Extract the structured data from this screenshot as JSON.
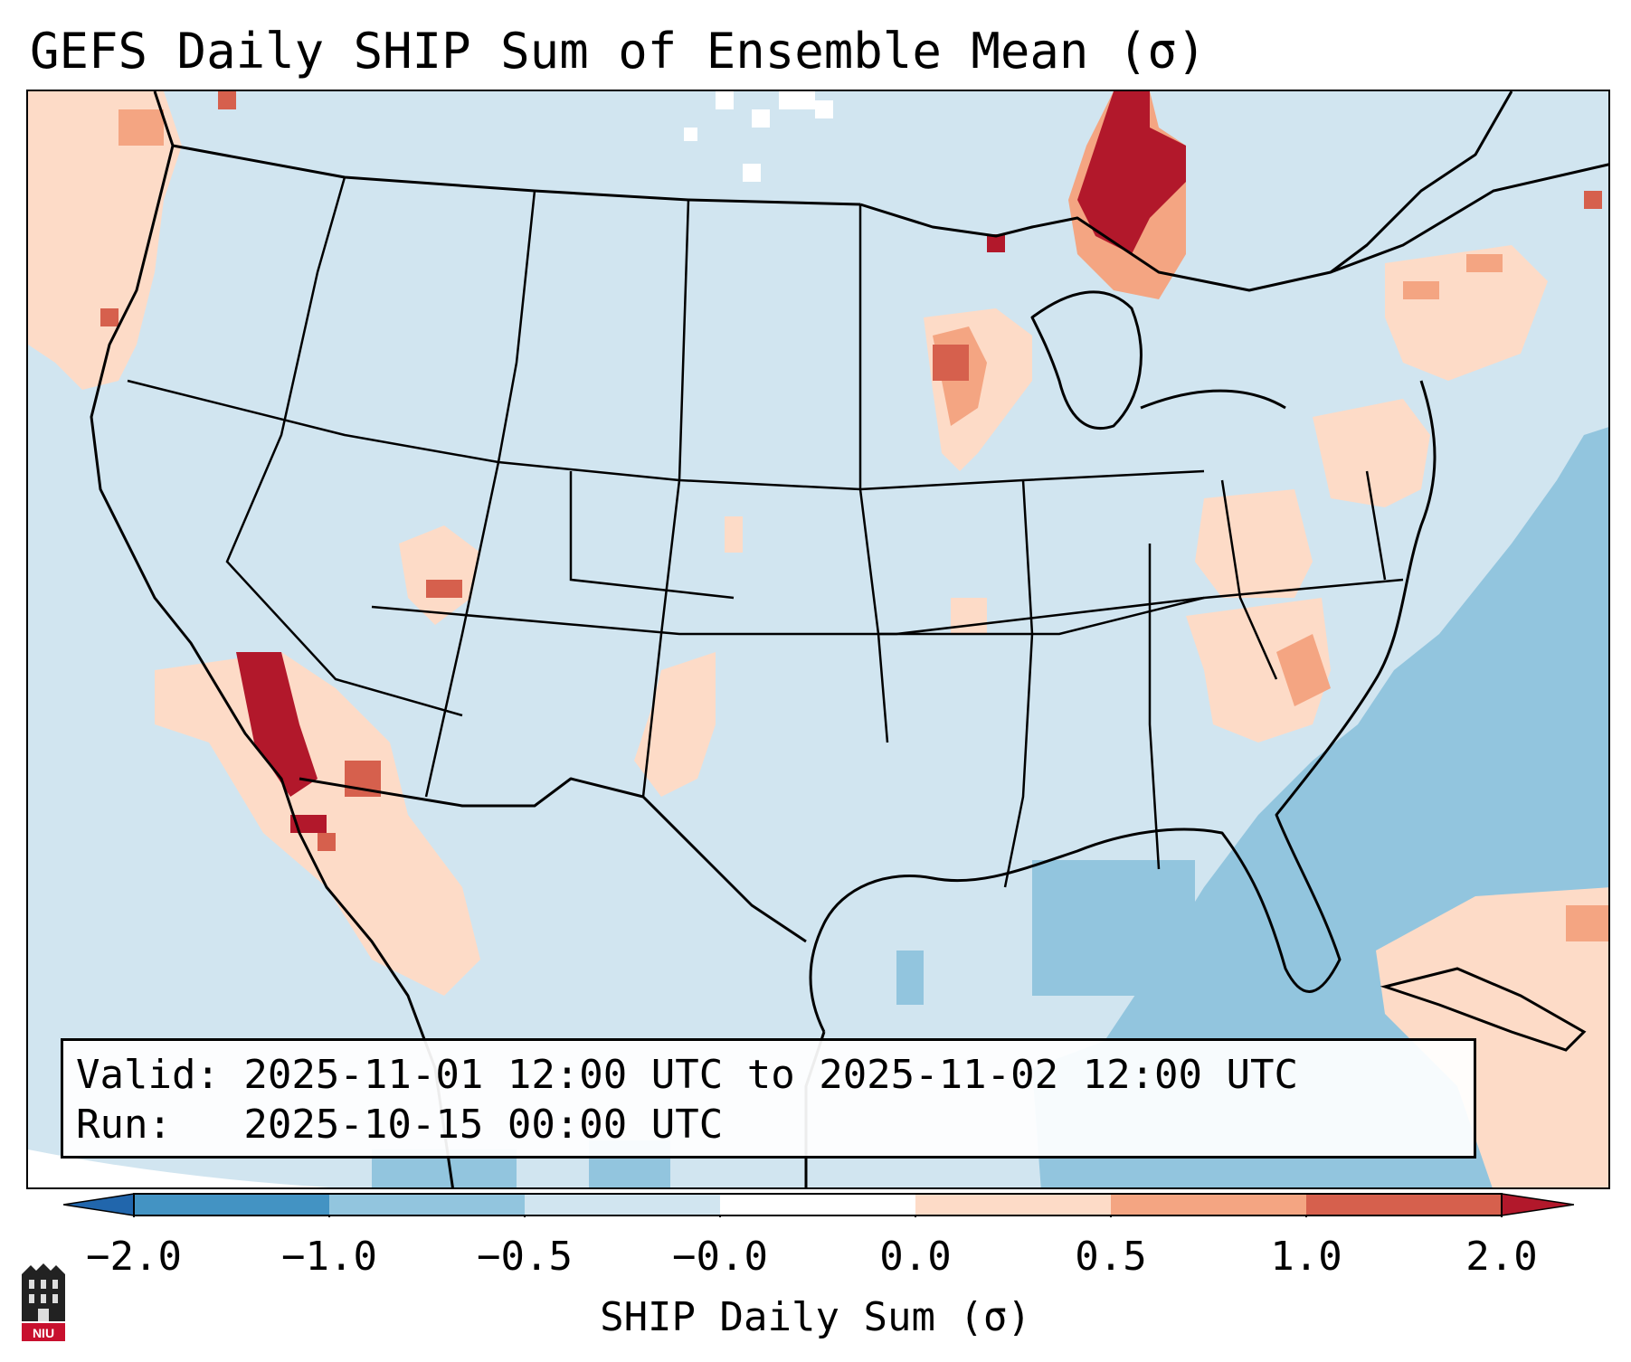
{
  "title": "GEFS Daily SHIP Sum of Ensemble Mean (σ)",
  "info": {
    "valid_line": "Valid: 2025-11-01 12:00 UTC to 2025-11-02 12:00 UTC",
    "run_line": "Run:   2025-10-15 00:00 UTC"
  },
  "colorbar": {
    "label": "SHIP Daily Sum (σ)",
    "ticks": [
      "−2.0",
      "−1.0",
      "−0.5",
      "−0.0",
      "0.0",
      "0.5",
      "1.0",
      "2.0"
    ],
    "bins": [
      {
        "range": "< -2.0",
        "color": "#2166ac"
      },
      {
        "range": "-2.0 to -1.0",
        "color": "#4393c3"
      },
      {
        "range": "-1.0 to -0.5",
        "color": "#92c5de"
      },
      {
        "range": "-0.5 to -0.0",
        "color": "#d1e5f0"
      },
      {
        "range": "-0.0 to 0.0",
        "color": "#ffffff"
      },
      {
        "range": "0.0 to 0.5",
        "color": "#fddbc7"
      },
      {
        "range": "0.5 to 1.0",
        "color": "#f4a582"
      },
      {
        "range": "1.0 to 2.0",
        "color": "#d6604d"
      },
      {
        "range": "> 2.0",
        "color": "#b2182b"
      }
    ]
  },
  "map": {
    "region": "Contiguous United States",
    "features": [
      "state borders",
      "coastlines",
      "Great Lakes",
      "Mexico",
      "Canada",
      "Cuba"
    ]
  },
  "logo": {
    "text": "NIU"
  }
}
